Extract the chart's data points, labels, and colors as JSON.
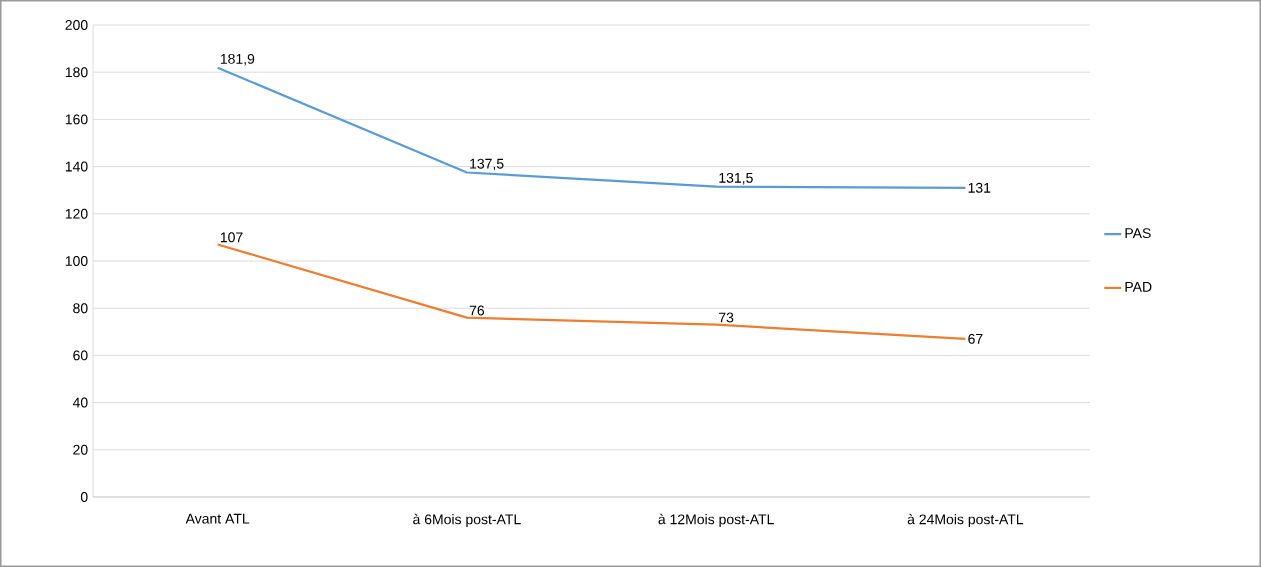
{
  "chart_data": {
    "type": "line",
    "categories": [
      "Avant ATL",
      "à 6Mois post-ATL",
      "à 12Mois post-ATL",
      "à 24Mois post-ATL"
    ],
    "series": [
      {
        "name": "PAS",
        "color": "#5b9bd5",
        "values": [
          181.9,
          137.5,
          131.5,
          131
        ],
        "value_labels": [
          "181,9",
          "137,5",
          "131,5",
          "131"
        ]
      },
      {
        "name": "PAD",
        "color": "#ed7d31",
        "values": [
          107,
          76,
          73,
          67
        ],
        "value_labels": [
          "107",
          "76",
          "73",
          "67"
        ]
      }
    ],
    "ylim": [
      0,
      200
    ],
    "yticks": [
      0,
      20,
      40,
      60,
      80,
      100,
      120,
      140,
      160,
      180,
      200
    ],
    "grid": "y",
    "legend": "right",
    "marker": "none",
    "line_style": "solid"
  }
}
